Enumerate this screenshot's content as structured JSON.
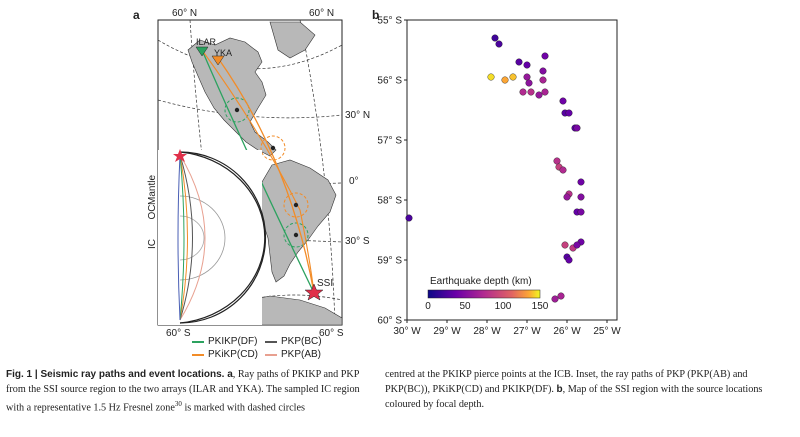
{
  "panel_a": {
    "letter": "a",
    "lat_labels": [
      "60° N",
      "60° N",
      "30° N",
      "0°",
      "30° S",
      "60° S",
      "60° S"
    ],
    "stations": [
      "ILAR",
      "YKA"
    ],
    "source": "SSI",
    "inset_labels": [
      "Mantle",
      "OC",
      "IC"
    ],
    "legend": [
      {
        "label": "PKIKP(DF)",
        "color": "#2ca25f"
      },
      {
        "label": "PKP(BC)",
        "color": "#555555"
      },
      {
        "label": "PKiKP(CD)",
        "color": "#f28c28"
      },
      {
        "label": "PKP(AB)",
        "color": "#e8a090"
      }
    ]
  },
  "panel_b": {
    "letter": "b",
    "colorbar_title": "Earthquake depth (km)",
    "colorbar_ticks": [
      "0",
      "50",
      "100",
      "150"
    ]
  },
  "chart_data": {
    "type": "scatter",
    "xlabel": "",
    "ylabel": "",
    "x_ticks": [
      "30° W",
      "29° W",
      "28° W",
      "27° W",
      "26° W",
      "25° W"
    ],
    "y_ticks": [
      "55° S",
      "56° S",
      "57° S",
      "58° S",
      "59° S",
      "60° S"
    ],
    "xlim": [
      -30,
      -24.75
    ],
    "ylim": [
      -60,
      -55
    ],
    "colorbar_range": [
      0,
      150
    ],
    "points": [
      {
        "lon": -27.8,
        "lat": -55.3,
        "depth": 20
      },
      {
        "lon": -27.7,
        "lat": -55.4,
        "depth": 25
      },
      {
        "lon": -27.2,
        "lat": -55.7,
        "depth": 30
      },
      {
        "lon": -27.0,
        "lat": -55.75,
        "depth": 35
      },
      {
        "lon": -26.55,
        "lat": -55.6,
        "depth": 40
      },
      {
        "lon": -26.6,
        "lat": -55.85,
        "depth": 50
      },
      {
        "lon": -27.0,
        "lat": -55.95,
        "depth": 60
      },
      {
        "lon": -26.95,
        "lat": -56.05,
        "depth": 55
      },
      {
        "lon": -26.6,
        "lat": -56.0,
        "depth": 70
      },
      {
        "lon": -27.1,
        "lat": -56.2,
        "depth": 75
      },
      {
        "lon": -26.9,
        "lat": -56.2,
        "depth": 80
      },
      {
        "lon": -26.7,
        "lat": -56.25,
        "depth": 60
      },
      {
        "lon": -26.55,
        "lat": -56.2,
        "depth": 70
      },
      {
        "lon": -27.35,
        "lat": -55.95,
        "depth": 140
      },
      {
        "lon": -27.55,
        "lat": -56.0,
        "depth": 135
      },
      {
        "lon": -27.9,
        "lat": -55.95,
        "depth": 145
      },
      {
        "lon": -26.1,
        "lat": -56.35,
        "depth": 40
      },
      {
        "lon": -26.05,
        "lat": -56.55,
        "depth": 30
      },
      {
        "lon": -25.95,
        "lat": -56.55,
        "depth": 35
      },
      {
        "lon": -25.8,
        "lat": -56.8,
        "depth": 30
      },
      {
        "lon": -25.75,
        "lat": -56.8,
        "depth": 45
      },
      {
        "lon": -26.25,
        "lat": -57.35,
        "depth": 80
      },
      {
        "lon": -26.2,
        "lat": -57.45,
        "depth": 90
      },
      {
        "lon": -26.1,
        "lat": -57.5,
        "depth": 75
      },
      {
        "lon": -25.65,
        "lat": -57.7,
        "depth": 40
      },
      {
        "lon": -25.95,
        "lat": -57.9,
        "depth": 80
      },
      {
        "lon": -26.0,
        "lat": -57.95,
        "depth": 60
      },
      {
        "lon": -25.65,
        "lat": -57.95,
        "depth": 50
      },
      {
        "lon": -25.75,
        "lat": -58.2,
        "depth": 35
      },
      {
        "lon": -25.65,
        "lat": -58.2,
        "depth": 45
      },
      {
        "lon": -29.95,
        "lat": -58.3,
        "depth": 25
      },
      {
        "lon": -26.05,
        "lat": -58.75,
        "depth": 90
      },
      {
        "lon": -25.85,
        "lat": -58.8,
        "depth": 85
      },
      {
        "lon": -25.65,
        "lat": -58.7,
        "depth": 40
      },
      {
        "lon": -25.75,
        "lat": -58.75,
        "depth": 45
      },
      {
        "lon": -26.0,
        "lat": -58.95,
        "depth": 30
      },
      {
        "lon": -25.95,
        "lat": -59.0,
        "depth": 35
      },
      {
        "lon": -26.15,
        "lat": -59.6,
        "depth": 70
      },
      {
        "lon": -26.3,
        "lat": -59.65,
        "depth": 65
      }
    ]
  },
  "caption": {
    "col1_lead": "Fig. 1 | Seismic ray paths and event locations. a",
    "col1_text": ", Ray paths of PKIKP and PKP from the SSI source region to the two arrays (ILAR and YKA). The sampled IC region with a representative 1.5 Hz Fresnel zone",
    "col1_sup": "30",
    "col1_tail": " is marked with dashed circles",
    "col2_text": "centred at the PKIKP pierce points at the ICB. Inset, the ray paths of PKP (PKP(AB) and PKP(BC)), PKiKP(CD) and PKIKP(DF). ",
    "col2_b": "b",
    "col2_tail": ", Map of the SSI region with the source locations coloured by focal depth."
  }
}
